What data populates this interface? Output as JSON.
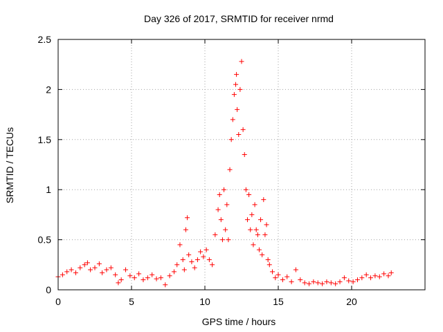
{
  "chart_data": {
    "type": "scatter",
    "title": "Day 326 of 2017, SRMTID for receiver nrmd",
    "xlabel": "GPS time / hours",
    "ylabel": "SRMTID / TECUs",
    "xlim": [
      0,
      25
    ],
    "ylim": [
      0,
      2.5
    ],
    "x_ticks": [
      0,
      5,
      10,
      15,
      20
    ],
    "x_tick_labels": [
      "0",
      "5",
      "10",
      "15",
      "20"
    ],
    "y_ticks": [
      0,
      0.5,
      1,
      1.5,
      2,
      2.5
    ],
    "y_tick_labels": [
      "0",
      "0.5",
      "1",
      "1.5",
      "2",
      "2.5"
    ],
    "grid": true,
    "marker": "plus",
    "color": "#ff0000",
    "series": [
      {
        "name": "SRMTID",
        "x": [
          0.0,
          0.3,
          0.6,
          0.9,
          1.2,
          1.5,
          1.8,
          2.0,
          2.2,
          2.5,
          2.8,
          3.0,
          3.3,
          3.6,
          3.9,
          4.1,
          4.3,
          4.6,
          4.9,
          5.2,
          5.5,
          5.8,
          6.1,
          6.4,
          6.7,
          7.0,
          7.3,
          7.6,
          7.9,
          8.1,
          8.3,
          8.5,
          8.6,
          8.7,
          8.8,
          8.9,
          9.1,
          9.3,
          9.5,
          9.7,
          9.9,
          10.1,
          10.3,
          10.5,
          10.7,
          10.9,
          11.0,
          11.1,
          11.2,
          11.3,
          11.4,
          11.5,
          11.6,
          11.7,
          11.8,
          11.9,
          12.0,
          12.1,
          12.15,
          12.2,
          12.3,
          12.4,
          12.5,
          12.6,
          12.7,
          12.8,
          12.9,
          13.0,
          13.1,
          13.2,
          13.3,
          13.4,
          13.5,
          13.6,
          13.7,
          13.8,
          13.9,
          14.0,
          14.1,
          14.2,
          14.3,
          14.4,
          14.6,
          14.8,
          15.0,
          15.3,
          15.6,
          15.9,
          16.2,
          16.5,
          16.8,
          17.1,
          17.4,
          17.7,
          18.0,
          18.3,
          18.6,
          18.9,
          19.2,
          19.5,
          19.8,
          20.1,
          20.4,
          20.7,
          21.0,
          21.3,
          21.6,
          21.9,
          22.2,
          22.5,
          22.7
        ],
        "y": [
          0.13,
          0.15,
          0.18,
          0.2,
          0.17,
          0.22,
          0.25,
          0.27,
          0.2,
          0.22,
          0.26,
          0.17,
          0.2,
          0.22,
          0.15,
          0.07,
          0.1,
          0.2,
          0.14,
          0.12,
          0.16,
          0.1,
          0.12,
          0.15,
          0.11,
          0.12,
          0.05,
          0.14,
          0.18,
          0.25,
          0.45,
          0.3,
          0.2,
          0.6,
          0.72,
          0.35,
          0.28,
          0.22,
          0.3,
          0.38,
          0.33,
          0.4,
          0.3,
          0.25,
          0.55,
          0.8,
          0.95,
          0.7,
          0.5,
          1.0,
          0.6,
          0.85,
          0.5,
          1.2,
          1.5,
          1.7,
          1.95,
          2.05,
          2.15,
          1.8,
          1.55,
          2.0,
          2.28,
          1.6,
          1.35,
          1.0,
          0.7,
          0.95,
          0.6,
          0.75,
          0.45,
          0.85,
          0.6,
          0.55,
          0.4,
          0.7,
          0.35,
          0.9,
          0.55,
          0.65,
          0.3,
          0.25,
          0.18,
          0.12,
          0.15,
          0.1,
          0.13,
          0.08,
          0.2,
          0.1,
          0.07,
          0.06,
          0.08,
          0.07,
          0.06,
          0.08,
          0.07,
          0.06,
          0.08,
          0.12,
          0.09,
          0.08,
          0.1,
          0.12,
          0.15,
          0.12,
          0.14,
          0.13,
          0.16,
          0.14,
          0.17
        ]
      }
    ]
  }
}
